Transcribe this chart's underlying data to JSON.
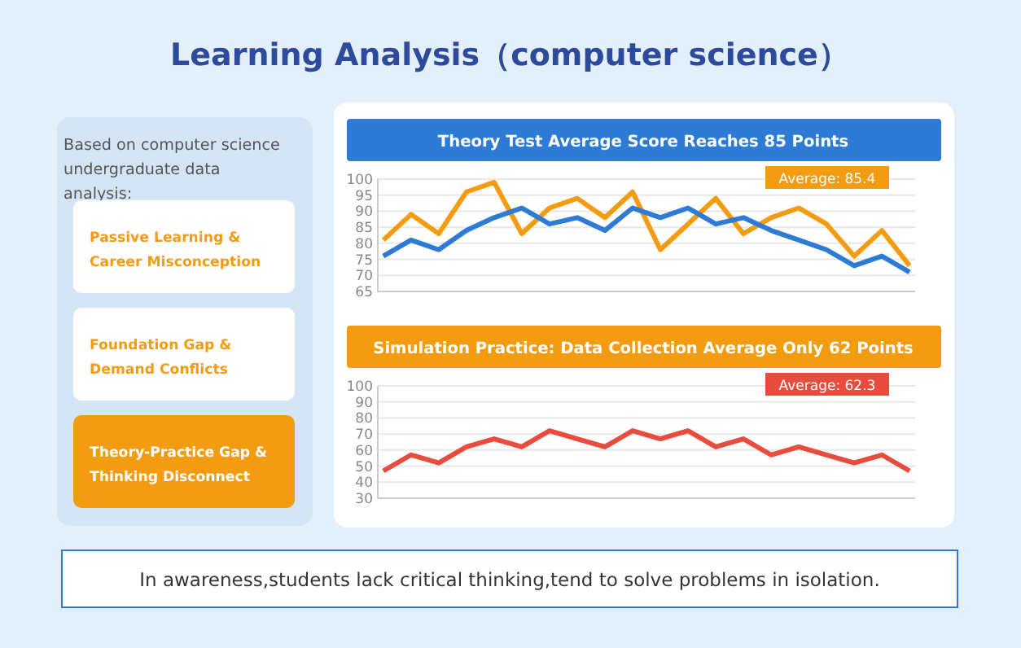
{
  "chart_data": [
    {
      "type": "other",
      "title": "Learning Analysis（computer science）",
      "subtitle": "Based on computer science undergraduate data analysis:",
      "annotations": [
        "Passive Learning & Career Misconception",
        "Foundation Gap & Demand Conflicts",
        "Theory-Practice Gap & Thinking Disconnect",
        "In awareness,students lack critical thinking,tend to solve problems in isolation."
      ]
    },
    {
      "type": "line",
      "title": "Theory Test Average Score Reaches 85 Points",
      "categories": [
        null,
        null,
        null,
        null,
        null,
        null,
        null,
        null,
        null,
        null,
        null,
        null,
        null,
        null,
        null,
        null,
        null,
        null,
        null,
        null
      ],
      "ylim": [
        65,
        100
      ],
      "yticks": [
        65,
        70,
        75,
        80,
        85,
        90,
        95,
        100
      ],
      "grid": "y",
      "tick_labels": "y",
      "marker": "none",
      "line_style": "solid",
      "annotations": [
        "Average: 85.4"
      ],
      "series": [
        {
          "color": "#f39c12",
          "values": [
            81,
            89,
            83,
            96,
            99,
            83,
            91,
            94,
            88,
            96,
            78,
            86,
            94,
            83,
            88,
            91,
            86,
            76,
            84,
            73
          ]
        },
        {
          "color": "#2e7bd6",
          "values": [
            76,
            81,
            78,
            84,
            88,
            91,
            86,
            88,
            84,
            91,
            88,
            91,
            86,
            88,
            84,
            81,
            78,
            73,
            76,
            71
          ]
        }
      ]
    },
    {
      "type": "line",
      "title": "Simulation Practice: Data Collection Average Only 62 Points",
      "categories": [
        null,
        null,
        null,
        null,
        null,
        null,
        null,
        null,
        null,
        null,
        null,
        null,
        null,
        null,
        null,
        null,
        null,
        null,
        null,
        null
      ],
      "ylim": [
        30,
        100
      ],
      "yticks": [
        30,
        40,
        50,
        60,
        70,
        80,
        90,
        100
      ],
      "grid": "y",
      "tick_labels": "y",
      "marker": "none",
      "line_style": "solid",
      "annotations": [
        "Average: 62.3"
      ],
      "series": [
        {
          "color": "#e74c3c",
          "values": [
            47,
            57,
            52,
            62,
            67,
            62,
            72,
            67,
            62,
            72,
            67,
            72,
            62,
            67,
            57,
            62,
            57,
            52,
            57,
            47
          ]
        }
      ]
    }
  ]
}
